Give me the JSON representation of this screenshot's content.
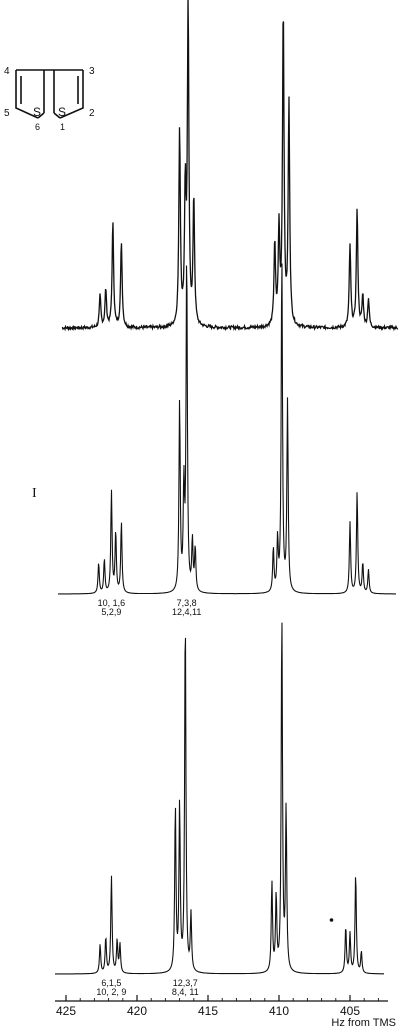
{
  "molecule": {
    "atom_labels": [
      "1",
      "2",
      "3",
      "4",
      "5",
      "6"
    ],
    "sulfur_labels": [
      "S",
      "S"
    ]
  },
  "roman_label": "I",
  "chart_data": {
    "type": "line",
    "xlabel": "Hz from TMS",
    "x_reversed": true,
    "xlim": [
      426,
      401
    ],
    "x_ticks": [
      425,
      420,
      415,
      410,
      405
    ],
    "x_tick_labels": [
      "425",
      "420",
      "415",
      "410",
      "405"
    ],
    "grid": false,
    "series": [
      {
        "noisy": true,
        "peaks": [
          {
            "x": 422.6,
            "h": 0.1
          },
          {
            "x": 422.2,
            "h": 0.12
          },
          {
            "x": 421.7,
            "h": 0.33
          },
          {
            "x": 421.1,
            "h": 0.27
          },
          {
            "x": 417.0,
            "h": 0.62
          },
          {
            "x": 416.6,
            "h": 0.42
          },
          {
            "x": 416.4,
            "h": 1.0
          },
          {
            "x": 416.0,
            "h": 0.4
          },
          {
            "x": 410.3,
            "h": 0.26
          },
          {
            "x": 410.0,
            "h": 0.3
          },
          {
            "x": 409.7,
            "h": 1.0
          },
          {
            "x": 409.3,
            "h": 0.7
          },
          {
            "x": 405.0,
            "h": 0.26
          },
          {
            "x": 404.5,
            "h": 0.37
          },
          {
            "x": 404.1,
            "h": 0.1
          },
          {
            "x": 403.7,
            "h": 0.09
          }
        ]
      },
      {
        "noisy": false,
        "peaks": [
          {
            "x": 422.7,
            "h": 0.09
          },
          {
            "x": 422.3,
            "h": 0.1
          },
          {
            "x": 421.8,
            "h": 0.3
          },
          {
            "x": 421.5,
            "h": 0.18
          },
          {
            "x": 421.1,
            "h": 0.21
          },
          {
            "x": 417.0,
            "h": 0.56
          },
          {
            "x": 416.7,
            "h": 0.3
          },
          {
            "x": 416.5,
            "h": 1.0
          },
          {
            "x": 416.1,
            "h": 0.15
          },
          {
            "x": 415.9,
            "h": 0.13
          },
          {
            "x": 410.4,
            "h": 0.13
          },
          {
            "x": 410.1,
            "h": 0.15
          },
          {
            "x": 409.8,
            "h": 1.0
          },
          {
            "x": 409.4,
            "h": 0.56
          },
          {
            "x": 405.0,
            "h": 0.21
          },
          {
            "x": 404.5,
            "h": 0.3
          },
          {
            "x": 404.1,
            "h": 0.09
          },
          {
            "x": 403.7,
            "h": 0.07
          }
        ],
        "annotations": [
          {
            "x": 421.8,
            "lines": [
              "10, 1,6",
              "5,2,9"
            ]
          },
          {
            "x": 416.5,
            "lines": [
              "7,3,8",
              "12,4,11"
            ]
          }
        ]
      },
      {
        "noisy": false,
        "peaks": [
          {
            "x": 422.6,
            "h": 0.08
          },
          {
            "x": 422.2,
            "h": 0.1
          },
          {
            "x": 421.8,
            "h": 0.27
          },
          {
            "x": 421.4,
            "h": 0.09
          },
          {
            "x": 421.2,
            "h": 0.08
          },
          {
            "x": 417.3,
            "h": 0.46
          },
          {
            "x": 417.0,
            "h": 0.46
          },
          {
            "x": 416.6,
            "h": 1.0
          },
          {
            "x": 416.2,
            "h": 0.16
          },
          {
            "x": 410.5,
            "h": 0.25
          },
          {
            "x": 410.2,
            "h": 0.21
          },
          {
            "x": 409.8,
            "h": 1.0
          },
          {
            "x": 409.5,
            "h": 0.45
          },
          {
            "x": 405.3,
            "h": 0.13
          },
          {
            "x": 405.0,
            "h": 0.11
          },
          {
            "x": 404.6,
            "h": 0.28
          },
          {
            "x": 404.2,
            "h": 0.06
          }
        ],
        "annotations": [
          {
            "x": 421.8,
            "lines": [
              "6,1,5",
              "10, 2, 9"
            ]
          },
          {
            "x": 416.6,
            "lines": [
              "12,3,7",
              "8,4, 11"
            ]
          }
        ]
      }
    ]
  }
}
